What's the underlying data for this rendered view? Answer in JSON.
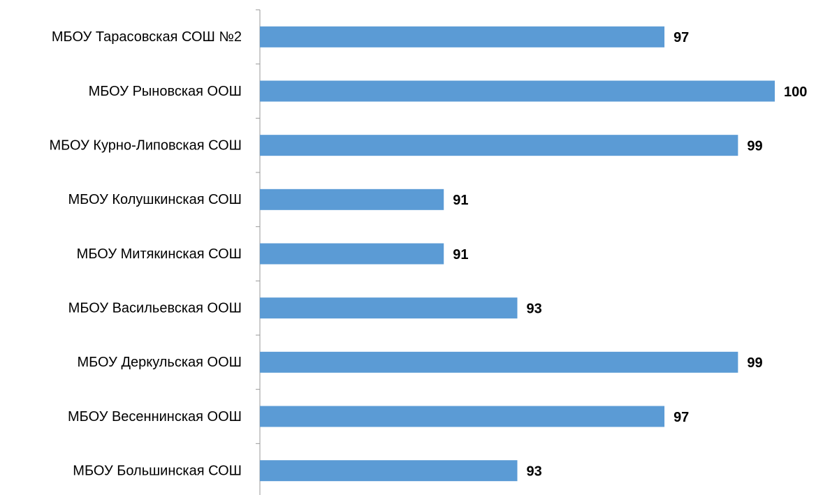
{
  "chart_data": {
    "type": "barh",
    "categories": [
      "МБОУ Тарасовская СОШ №2",
      "МБОУ Рыновская ООШ",
      "МБОУ Курно-Липовская СОШ",
      "МБОУ Колушкинская СОШ",
      "МБОУ Митякинская СОШ",
      "МБОУ Васильевская ООШ",
      "МБОУ Деркульская ООШ",
      "МБОУ Весеннинская  ООШ",
      "МБОУ Большинская СОШ"
    ],
    "values": [
      97,
      100,
      99,
      91,
      91,
      93,
      99,
      97,
      93
    ],
    "color": "#5b9bd5",
    "xlim": [
      86,
      100
    ]
  }
}
